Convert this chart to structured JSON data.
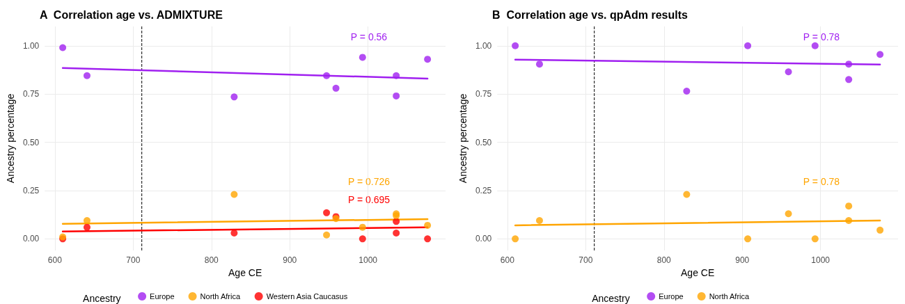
{
  "chart_data": [
    {
      "type": "scatter",
      "title": "A  Correlation age vs. ADMIXTURE",
      "xlabel": "Age CE",
      "ylabel": "Ancestry percentage",
      "legend_title": "Ancestry",
      "legend": "bottom",
      "grid": true,
      "xlim": [
        587,
        1099
      ],
      "xticks": [
        600,
        700,
        800,
        900,
        1000
      ],
      "ylim": [
        -0.06,
        1.1
      ],
      "yticks": [
        {
          "value": 0,
          "label": "0.00"
        },
        {
          "value": 0.25,
          "label": "0.25"
        },
        {
          "value": 0.5,
          "label": "0.50"
        },
        {
          "value": 0.75,
          "label": "0.75"
        },
        {
          "value": 1,
          "label": "1.00"
        }
      ],
      "ref_lines": [
        {
          "axis": "x",
          "value": 711,
          "color": "#000000",
          "line_style": "dashed"
        }
      ],
      "annotations": [
        "P = 0.56",
        "P = 0.726",
        "P = 0.695"
      ],
      "series": [
        {
          "name": "Europe",
          "color": "#a020f0",
          "x": [
            610,
            641,
            829,
            947,
            959,
            993,
            1036,
            1036,
            1076
          ],
          "values": [
            0.99,
            0.845,
            0.735,
            0.845,
            0.78,
            0.94,
            0.845,
            0.74,
            0.93
          ]
        },
        {
          "name": "North Africa",
          "color": "#ffa500",
          "x": [
            610,
            641,
            829,
            947,
            959,
            993,
            1036,
            1036,
            1076
          ],
          "values": [
            0.01,
            0.095,
            0.23,
            0.02,
            0.105,
            0.06,
            0.13,
            0.12,
            0.07
          ]
        },
        {
          "name": "Western Asia Caucasus",
          "color": "#ff0000",
          "x": [
            610,
            641,
            829,
            947,
            959,
            993,
            1036,
            1036,
            1076
          ],
          "values": [
            0,
            0.06,
            0.03,
            0.135,
            0.115,
            0,
            0.09,
            0.03,
            0
          ]
        },
        {
          "type": "line",
          "color": "#a020f0",
          "x": [
            610,
            1076
          ],
          "values": [
            0.885,
            0.83
          ]
        },
        {
          "type": "line",
          "color": "#ffa500",
          "x": [
            610,
            1076
          ],
          "values": [
            0.078,
            0.102
          ]
        },
        {
          "type": "line",
          "color": "#ff0000",
          "x": [
            610,
            1076
          ],
          "values": [
            0.038,
            0.06
          ]
        }
      ]
    },
    {
      "type": "scatter",
      "title": "B  Correlation age vs. qpAdm results",
      "xlabel": "Age CE",
      "ylabel": "Ancestry percentage",
      "legend_title": "Ancestry",
      "legend": "bottom",
      "grid": true,
      "xlim": [
        587,
        1099
      ],
      "xticks": [
        600,
        700,
        800,
        900,
        1000
      ],
      "ylim": [
        -0.06,
        1.1
      ],
      "yticks": [
        {
          "value": 0,
          "label": "0.00"
        },
        {
          "value": 0.25,
          "label": "0.25"
        },
        {
          "value": 0.5,
          "label": "0.50"
        },
        {
          "value": 0.75,
          "label": "0.75"
        },
        {
          "value": 1,
          "label": "1.00"
        }
      ],
      "ref_lines": [
        {
          "axis": "x",
          "value": 711,
          "color": "#000000",
          "line_style": "dashed"
        }
      ],
      "annotations": [
        "P = 0.78",
        "P = 0.78"
      ],
      "series": [
        {
          "name": "Europe",
          "color": "#a020f0",
          "x": [
            610,
            641,
            829,
            907,
            959,
            993,
            1036,
            1036,
            1076
          ],
          "values": [
            1,
            0.905,
            0.765,
            1,
            0.865,
            1,
            0.905,
            0.825,
            0.955
          ]
        },
        {
          "name": "North Africa",
          "color": "#ffa500",
          "x": [
            610,
            641,
            829,
            907,
            959,
            993,
            1036,
            1036,
            1076
          ],
          "values": [
            0,
            0.095,
            0.23,
            0,
            0.13,
            0,
            0.17,
            0.095,
            0.045
          ]
        },
        {
          "type": "line",
          "color": "#a020f0",
          "x": [
            610,
            1076
          ],
          "values": [
            0.928,
            0.903
          ]
        },
        {
          "type": "line",
          "color": "#ffa500",
          "x": [
            610,
            1076
          ],
          "values": [
            0.07,
            0.095
          ]
        }
      ]
    }
  ]
}
